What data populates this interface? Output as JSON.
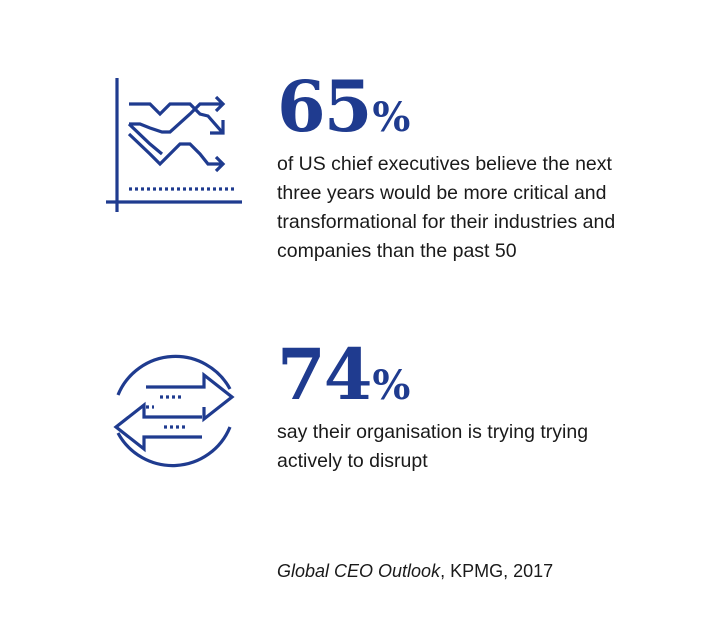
{
  "icons": {
    "first": "line-chart-arrows-icon",
    "second": "exchange-arrows-cycle-icon",
    "color": "#1f3b8f"
  },
  "stats": [
    {
      "number": "65",
      "percent": "%",
      "text": "of US chief executives believe the next three years would be more critical and transformational for their industries and companies than the past 50"
    },
    {
      "number": "74",
      "percent": "%",
      "text": "say their organisation is trying trying actively to disrupt"
    }
  ],
  "source": {
    "title": "Global CEO Outlook",
    "rest": ", KPMG, 2017"
  }
}
